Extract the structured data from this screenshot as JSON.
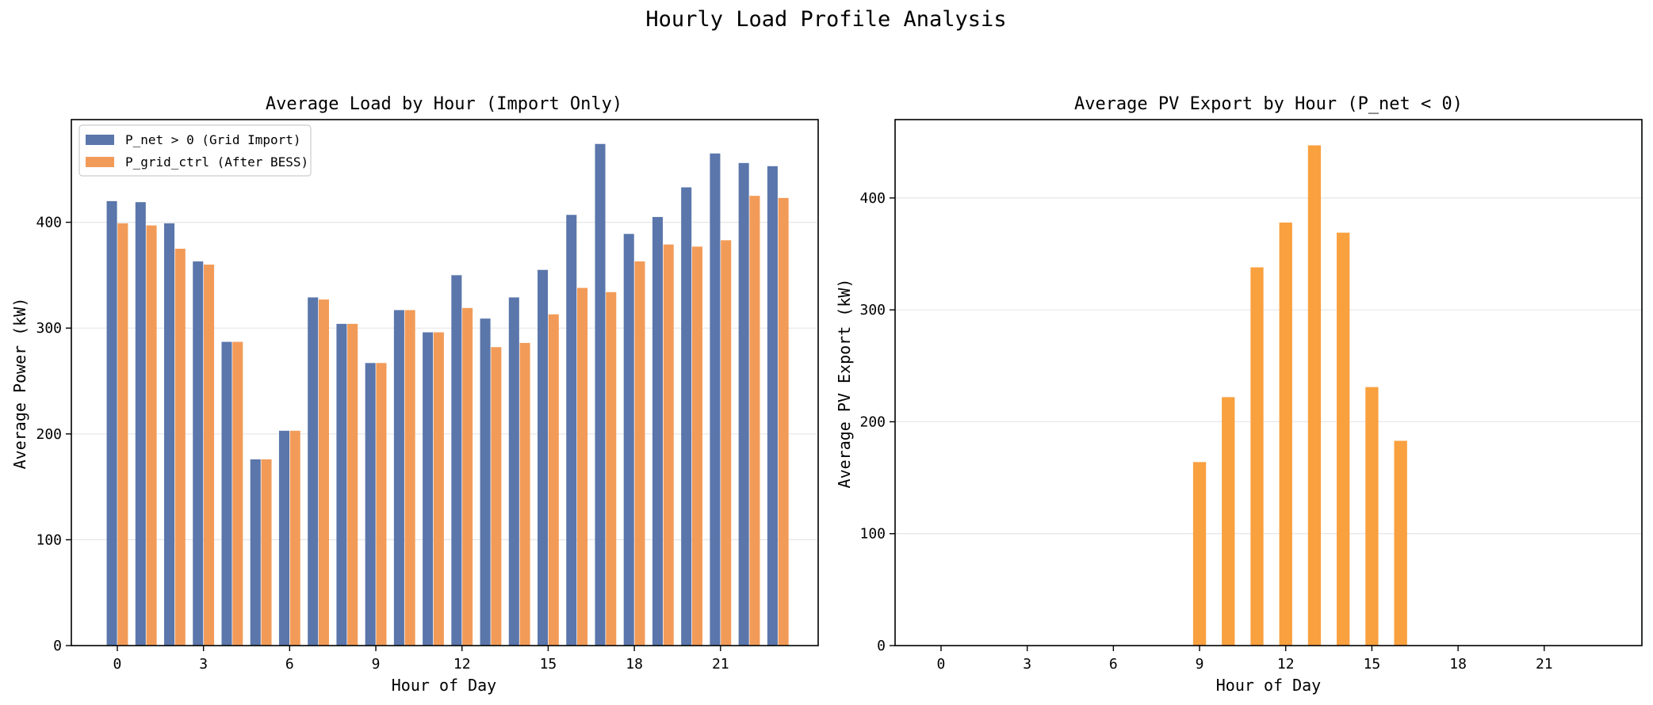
{
  "figure": {
    "title": "Hourly Load Profile Analysis"
  },
  "chart_data": [
    {
      "type": "bar",
      "title": "Average Load by Hour (Import Only)",
      "xlabel": "Hour of Day",
      "ylabel": "Average Power (kW)",
      "x": [
        0,
        1,
        2,
        3,
        4,
        5,
        6,
        7,
        8,
        9,
        10,
        11,
        12,
        13,
        14,
        15,
        16,
        17,
        18,
        19,
        20,
        21,
        22,
        23
      ],
      "xticks": [
        0,
        3,
        6,
        9,
        12,
        15,
        18,
        21
      ],
      "xlim": [
        -1.6,
        24.4
      ],
      "ylim": [
        0,
        497
      ],
      "yticks": [
        0,
        100,
        200,
        300,
        400
      ],
      "grid": "y",
      "legend_position": "upper-left",
      "series": [
        {
          "name": "P_net > 0 (Grid Import)",
          "color": "#5a76ab",
          "values": [
            420,
            419,
            399,
            363,
            287,
            176,
            203,
            329,
            304,
            267,
            317,
            296,
            350,
            309,
            329,
            355,
            407,
            474,
            389,
            405,
            433,
            465,
            456,
            453
          ]
        },
        {
          "name": "P_grid_ctrl (After BESS)",
          "color": "#f29b58",
          "values": [
            399,
            397,
            375,
            360,
            287,
            176,
            203,
            327,
            304,
            267,
            317,
            296,
            319,
            282,
            286,
            313,
            338,
            334,
            363,
            379,
            377,
            383,
            425,
            423
          ]
        }
      ]
    },
    {
      "type": "bar",
      "title": "Average PV Export by Hour (P_net < 0)",
      "xlabel": "Hour of Day",
      "ylabel": "Average PV Export (kW)",
      "x": [
        0,
        1,
        2,
        3,
        4,
        5,
        6,
        7,
        8,
        9,
        10,
        11,
        12,
        13,
        14,
        15,
        16,
        17,
        18,
        19,
        20,
        21,
        22,
        23
      ],
      "xticks": [
        0,
        3,
        6,
        9,
        12,
        15,
        18,
        21
      ],
      "xlim": [
        -1.6,
        24.4
      ],
      "ylim": [
        0,
        470
      ],
      "yticks": [
        0,
        100,
        200,
        300,
        400
      ],
      "grid": "y",
      "series": [
        {
          "color": "#f9a03f",
          "values": [
            0,
            0,
            0,
            0,
            0,
            0,
            0,
            0,
            0,
            164,
            222,
            338,
            378,
            447,
            369,
            231,
            183,
            0,
            0,
            0,
            0,
            0,
            0,
            0
          ]
        }
      ]
    }
  ]
}
